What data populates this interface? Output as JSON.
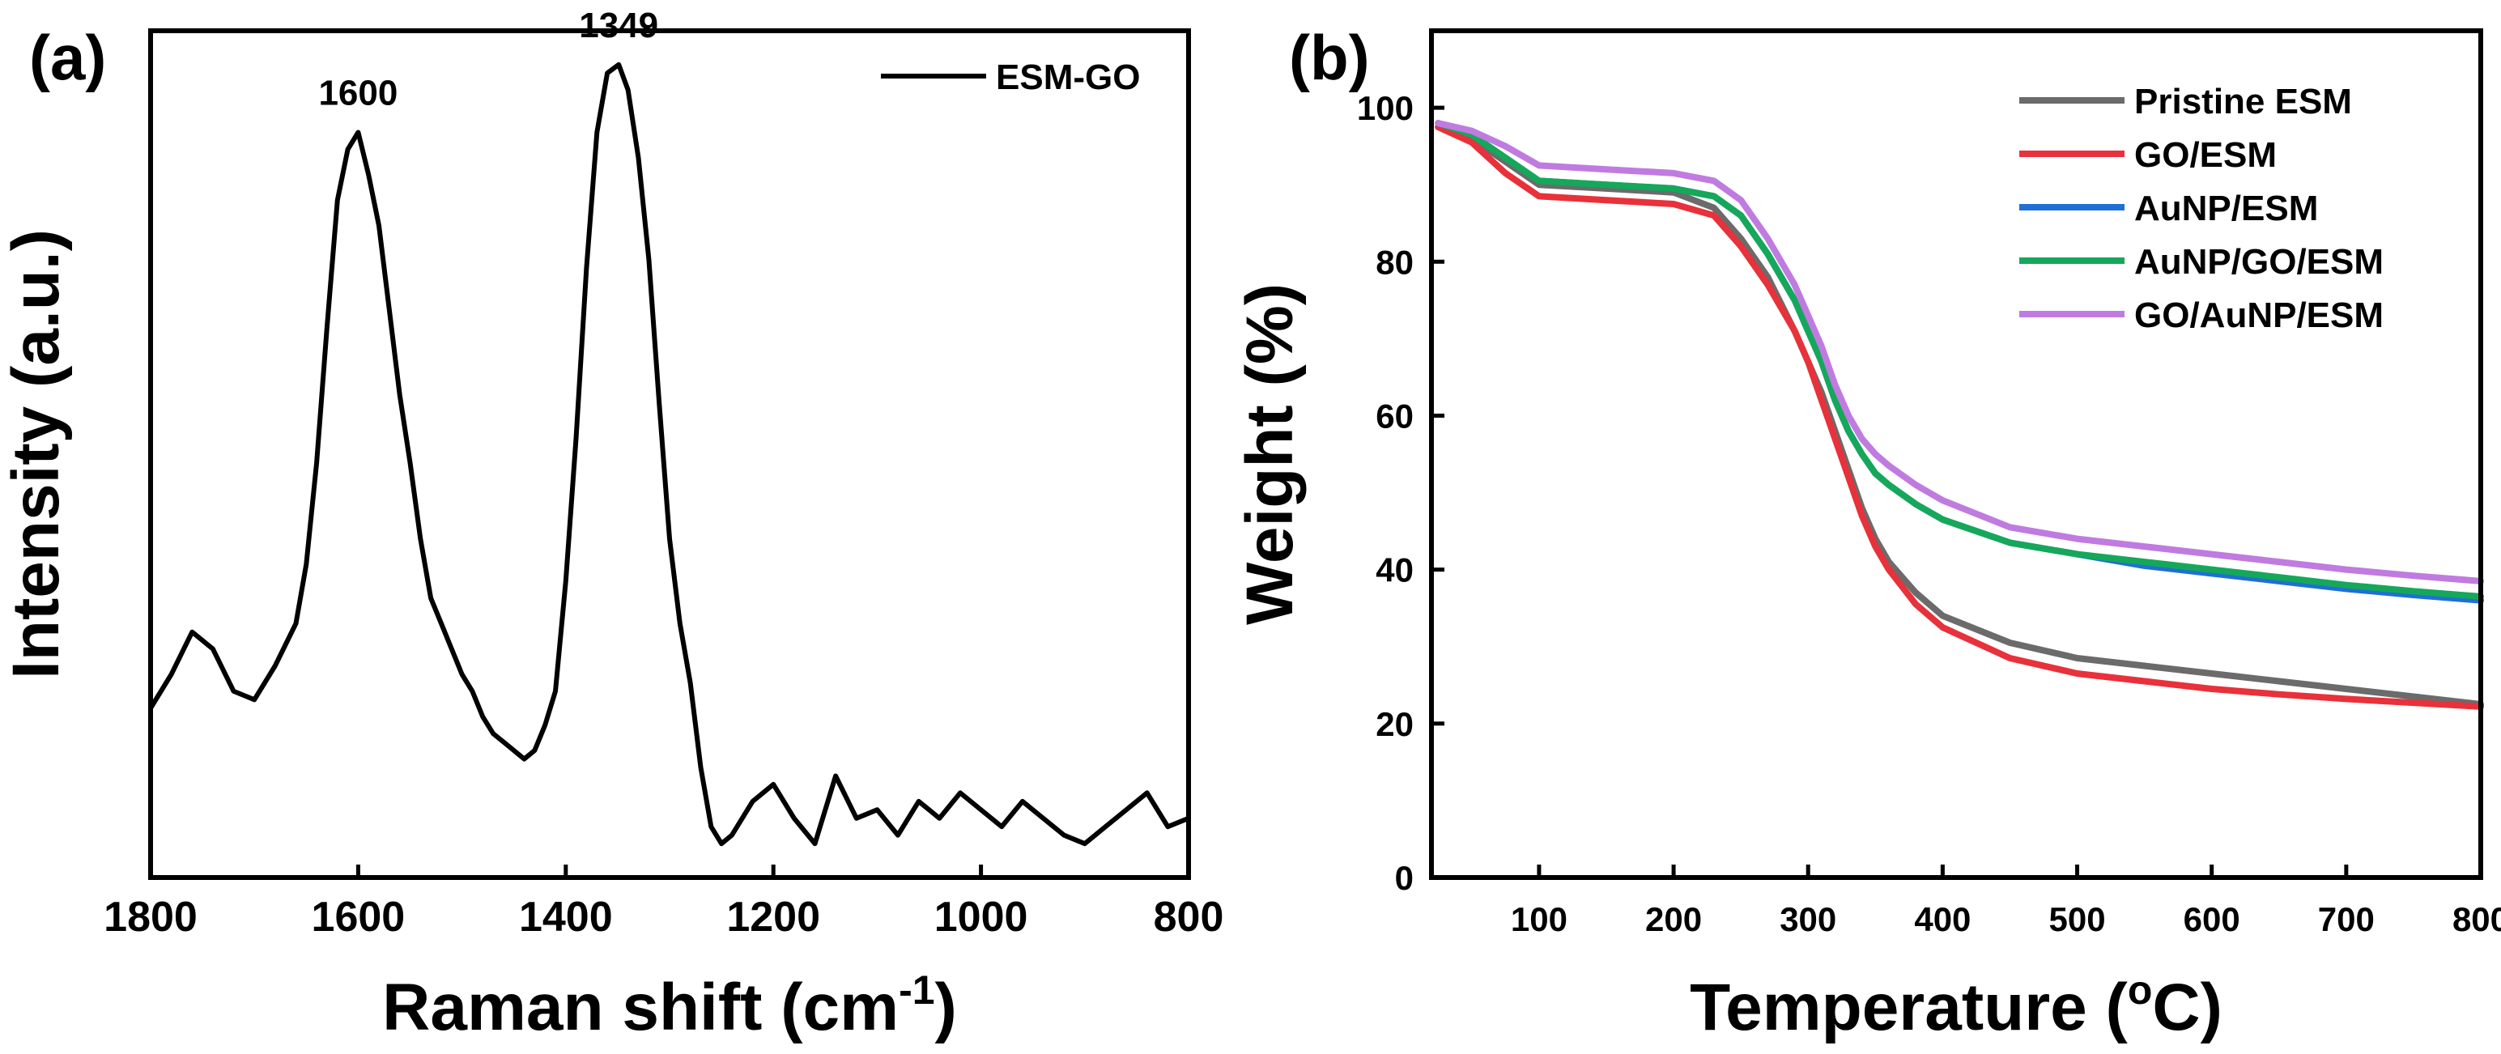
{
  "chart_data": [
    {
      "panel_label": "(a)",
      "type": "line",
      "title": "",
      "xlabel_main": "Raman shift (cm",
      "xlabel_sup": "-1",
      "xlabel_tail": ")",
      "ylabel": "Intensity (a.u.)",
      "xlim": [
        1800,
        800
      ],
      "ylim": [
        0,
        100
      ],
      "x_ticks": [
        1800,
        1600,
        1400,
        1200,
        1000,
        800
      ],
      "x_tick_labels": [
        "1800",
        "1600",
        "1400",
        "1200",
        "1000",
        "800"
      ],
      "y_ticks_shown": false,
      "legend": {
        "position": "top-right",
        "entries": [
          "ESM-GO"
        ]
      },
      "annotations": [
        {
          "text": "1600",
          "x": 1600,
          "y": 88
        },
        {
          "text": "1349",
          "x": 1349,
          "y": 96
        }
      ],
      "series": [
        {
          "name": "ESM-GO",
          "color": "#000000",
          "x": [
            1800,
            1780,
            1760,
            1740,
            1720,
            1700,
            1680,
            1660,
            1650,
            1640,
            1630,
            1620,
            1610,
            1600,
            1590,
            1580,
            1570,
            1560,
            1550,
            1540,
            1530,
            1520,
            1510,
            1500,
            1490,
            1480,
            1470,
            1460,
            1450,
            1440,
            1430,
            1420,
            1410,
            1400,
            1390,
            1380,
            1370,
            1360,
            1349,
            1340,
            1330,
            1320,
            1310,
            1300,
            1290,
            1280,
            1270,
            1260,
            1250,
            1240,
            1220,
            1200,
            1180,
            1160,
            1140,
            1120,
            1100,
            1080,
            1060,
            1040,
            1020,
            1000,
            980,
            960,
            940,
            920,
            900,
            880,
            860,
            840,
            820,
            800
          ],
          "y": [
            20,
            24,
            29,
            27,
            22,
            21,
            25,
            30,
            37,
            49,
            65,
            80,
            86,
            88,
            83,
            77,
            67,
            57,
            49,
            40,
            33,
            30,
            27,
            24,
            22,
            19,
            17,
            16,
            15,
            14,
            15,
            18,
            22,
            35,
            52,
            72,
            88,
            95,
            96,
            93,
            85,
            73,
            56,
            40,
            30,
            23,
            13,
            6,
            4,
            5,
            9,
            11,
            7,
            4,
            12,
            7,
            8,
            5,
            9,
            7,
            10,
            8,
            6,
            9,
            7,
            5,
            4,
            6,
            8,
            10,
            6,
            7
          ]
        }
      ]
    },
    {
      "panel_label": "(b)",
      "type": "line",
      "title": "",
      "xlabel_main": "Temperature (",
      "xlabel_sup": "o",
      "xlabel_tail": "C)",
      "ylabel": "Weight (%)",
      "xlim": [
        20,
        800
      ],
      "ylim": [
        0,
        110
      ],
      "x_ticks": [
        100,
        200,
        300,
        400,
        500,
        600,
        700,
        800
      ],
      "x_tick_labels": [
        "100",
        "200",
        "300",
        "400",
        "500",
        "600",
        "700",
        "800"
      ],
      "y_ticks": [
        0,
        20,
        40,
        60,
        80,
        100
      ],
      "y_tick_labels": [
        "0",
        "20",
        "40",
        "60",
        "80",
        "100"
      ],
      "legend": {
        "position": "top-right",
        "entries": [
          "Pristine ESM",
          "GO/ESM",
          "AuNP/ESM",
          "AuNP/GO/ESM",
          "GO/AuNP/ESM"
        ]
      },
      "series": [
        {
          "name": "Pristine ESM",
          "color": "#6b6b6b",
          "x": [
            25,
            50,
            75,
            100,
            150,
            200,
            230,
            250,
            270,
            290,
            300,
            310,
            320,
            330,
            340,
            350,
            360,
            380,
            400,
            450,
            500,
            550,
            600,
            650,
            700,
            750,
            800
          ],
          "y": [
            97.5,
            96,
            93,
            90,
            89.5,
            89,
            87,
            83,
            78,
            71,
            67,
            63,
            58,
            53,
            48,
            44,
            41,
            37,
            34,
            30.5,
            28.5,
            27.5,
            26.5,
            25.5,
            24.5,
            23.5,
            22.5
          ]
        },
        {
          "name": "GO/ESM",
          "color": "#e8313a",
          "x": [
            25,
            50,
            75,
            100,
            150,
            200,
            230,
            250,
            270,
            290,
            300,
            310,
            320,
            330,
            340,
            350,
            360,
            380,
            400,
            450,
            500,
            550,
            600,
            650,
            700,
            750,
            800
          ],
          "y": [
            97.5,
            95.5,
            91.5,
            88.5,
            88,
            87.5,
            86,
            82,
            77,
            71,
            67,
            62,
            57,
            52,
            47,
            43,
            40,
            35.5,
            32.5,
            28.5,
            26.5,
            25.5,
            24.5,
            23.8,
            23.2,
            22.7,
            22.2
          ]
        },
        {
          "name": "AuNP/ESM",
          "color": "#1f6fd6",
          "x": [
            25,
            50,
            75,
            100,
            150,
            200,
            230,
            250,
            270,
            290,
            300,
            310,
            320,
            330,
            340,
            350,
            360,
            380,
            400,
            450,
            500,
            550,
            600,
            650,
            700,
            750,
            800
          ],
          "y": [
            98,
            96.5,
            93.5,
            90.5,
            90,
            89.5,
            88.5,
            86,
            81,
            75,
            71,
            67,
            62,
            58,
            55,
            52.5,
            51,
            48.5,
            46.5,
            43.5,
            42,
            40.5,
            39.5,
            38.5,
            37.5,
            36.7,
            36
          ]
        },
        {
          "name": "AuNP/GO/ESM",
          "color": "#15a85a",
          "x": [
            25,
            50,
            75,
            100,
            150,
            200,
            230,
            250,
            270,
            290,
            300,
            310,
            320,
            330,
            340,
            350,
            360,
            380,
            400,
            450,
            500,
            550,
            600,
            650,
            700,
            750,
            800
          ],
          "y": [
            98,
            96.5,
            93.5,
            90.5,
            90,
            89.5,
            88.5,
            86,
            81,
            75,
            71,
            67,
            62,
            58,
            55,
            52.5,
            51,
            48.5,
            46.5,
            43.5,
            42,
            41,
            40,
            39,
            38,
            37.2,
            36.5
          ]
        },
        {
          "name": "GO/AuNP/ESM",
          "color": "#c07be0",
          "x": [
            25,
            50,
            75,
            100,
            150,
            200,
            230,
            250,
            270,
            290,
            300,
            310,
            320,
            330,
            340,
            350,
            360,
            380,
            400,
            450,
            500,
            550,
            600,
            650,
            700,
            750,
            800
          ],
          "y": [
            98,
            97,
            95,
            92.5,
            92,
            91.5,
            90.5,
            88,
            83,
            77,
            73,
            69,
            64,
            60,
            57,
            55,
            53.5,
            51,
            49,
            45.5,
            44,
            43,
            42,
            41,
            40,
            39.2,
            38.5
          ]
        }
      ]
    }
  ]
}
